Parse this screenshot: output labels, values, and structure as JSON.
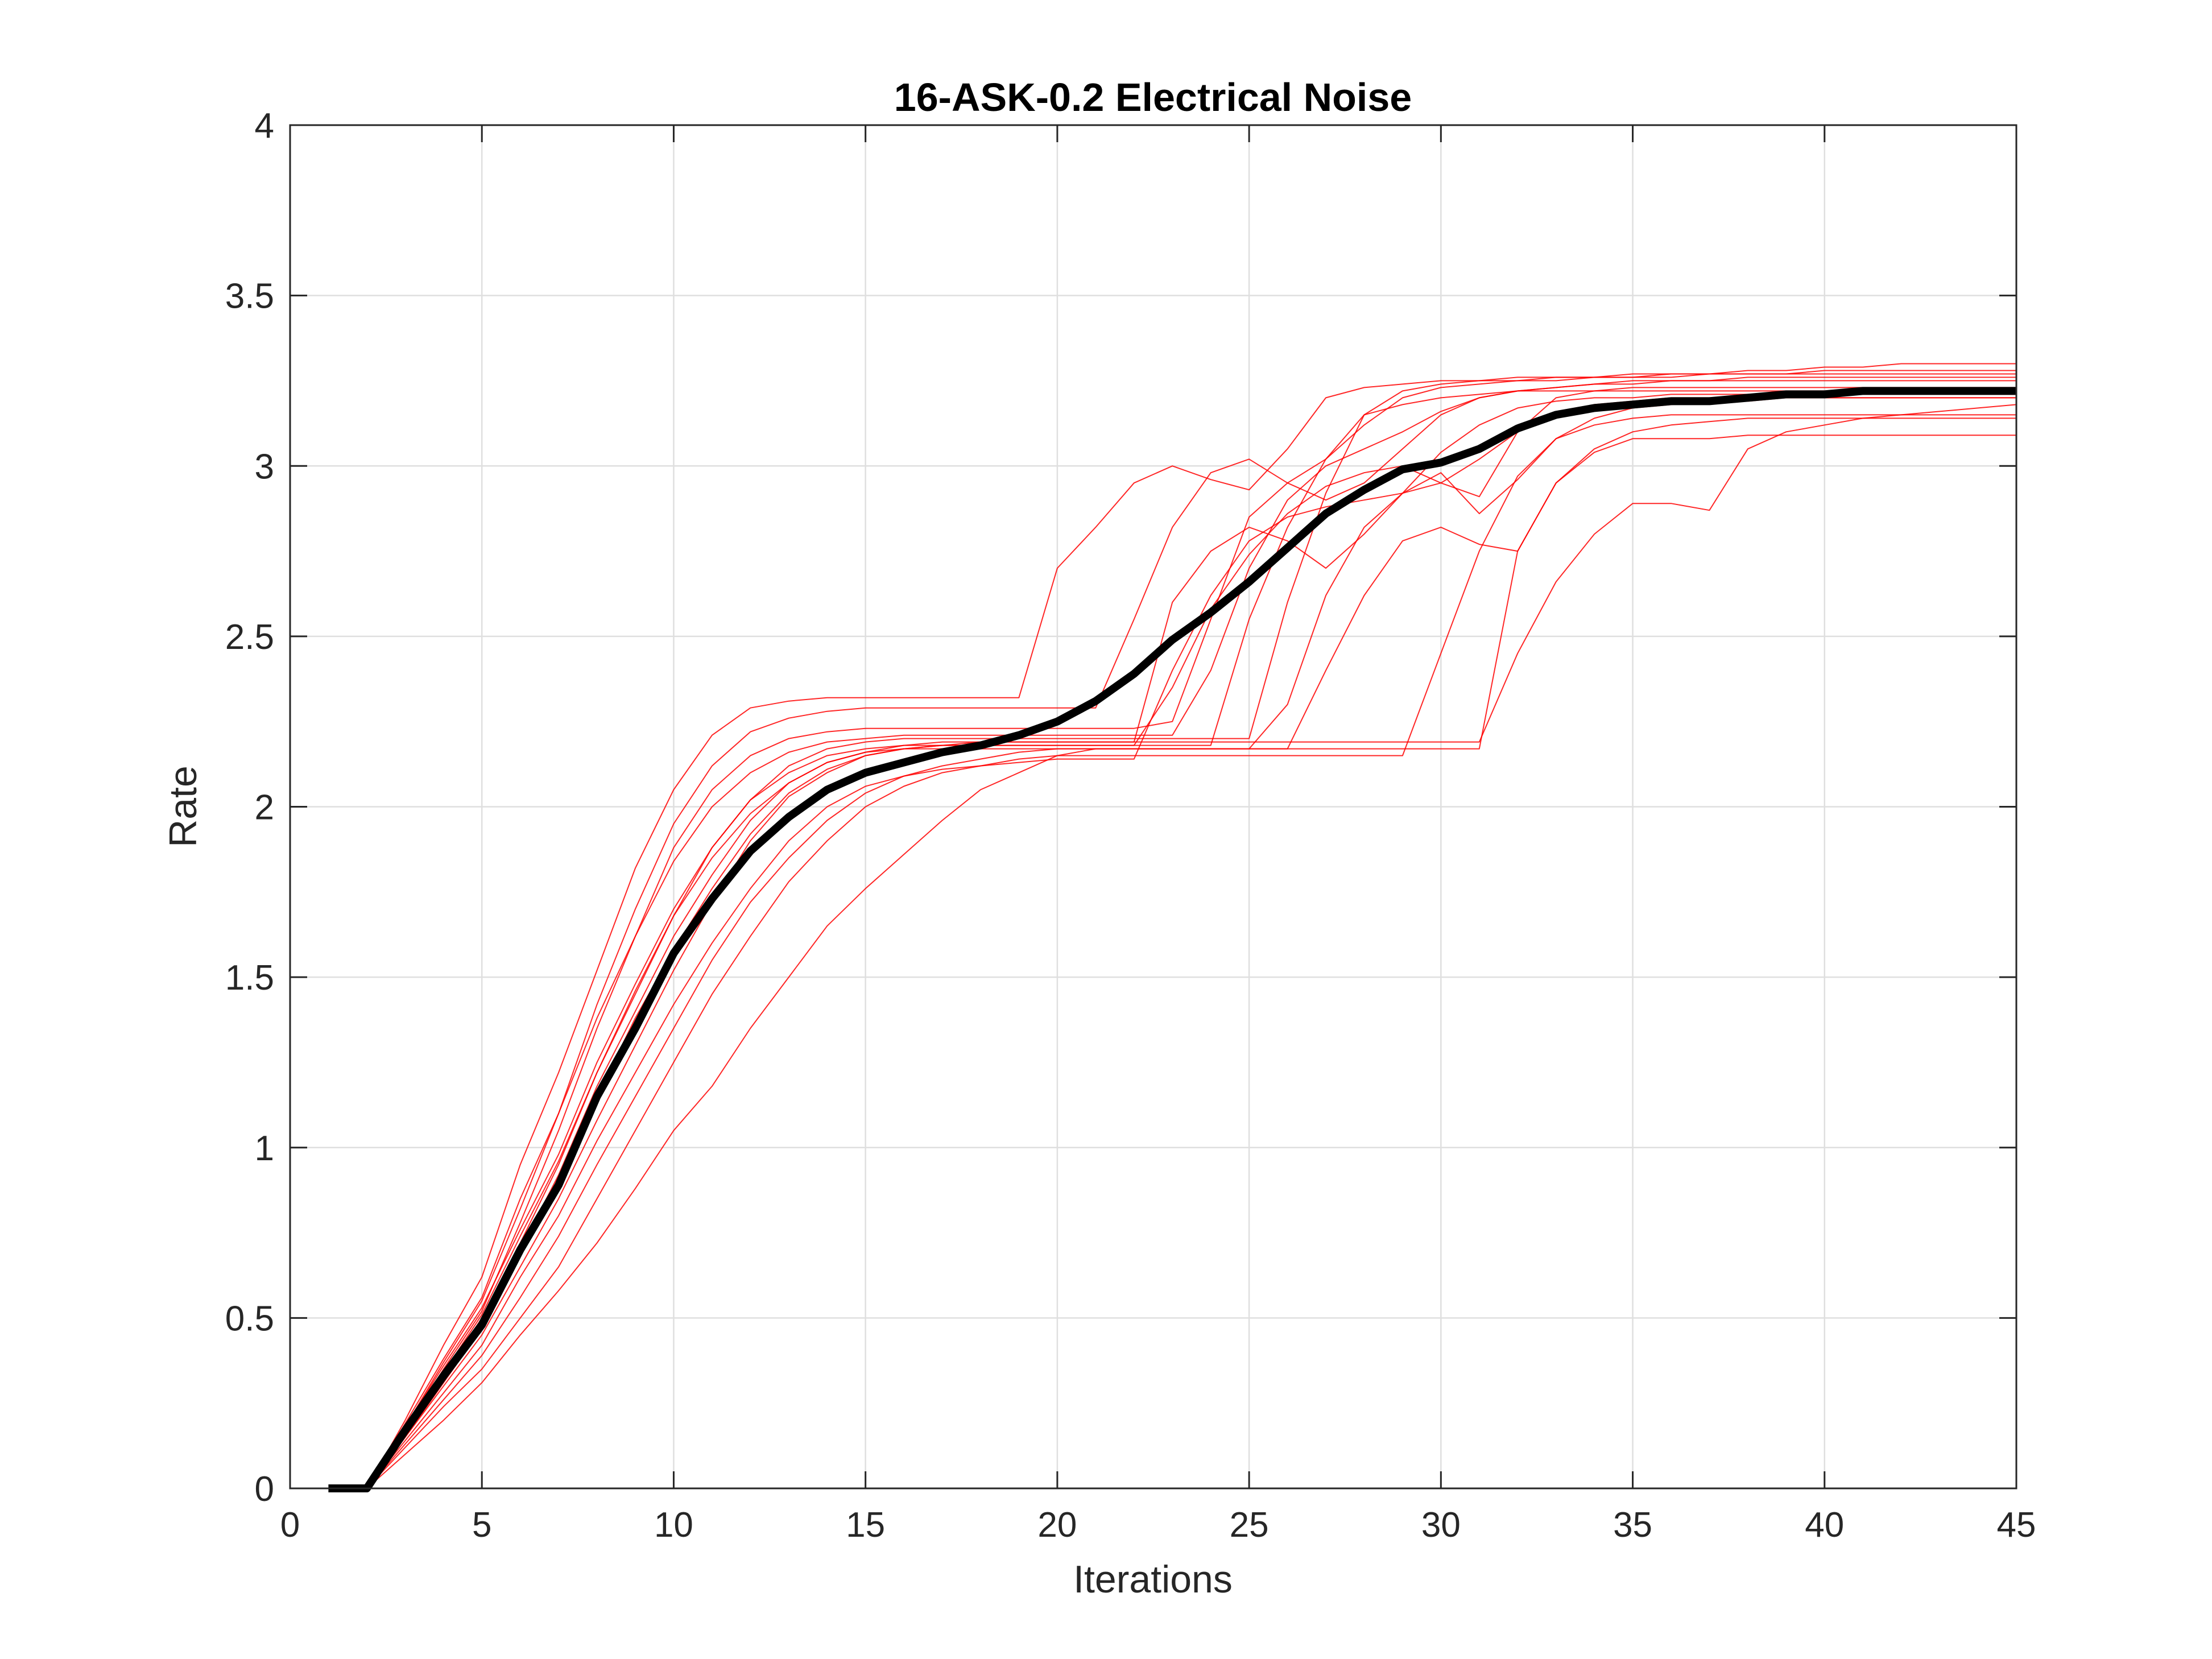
{
  "chart_data": {
    "type": "line",
    "title": "16-ASK-0.2 Electrical Noise",
    "xlabel": "Iterations",
    "ylabel": "Rate",
    "xlim": [
      0,
      45
    ],
    "ylim": [
      0,
      4
    ],
    "xticks": [
      0,
      5,
      10,
      15,
      20,
      25,
      30,
      35,
      40,
      45
    ],
    "yticks": [
      0,
      0.5,
      1,
      1.5,
      2,
      2.5,
      3,
      3.5,
      4
    ],
    "xtick_labels": [
      "0",
      "5",
      "10",
      "15",
      "20",
      "25",
      "30",
      "35",
      "40",
      "45"
    ],
    "ytick_labels": [
      "0",
      "0.5",
      "1",
      "1.5",
      "2",
      "2.5",
      "3",
      "3.5",
      "4"
    ],
    "grid": true,
    "legend": "none",
    "x": [
      1,
      2,
      3,
      4,
      5,
      6,
      7,
      8,
      9,
      10,
      11,
      12,
      13,
      14,
      15,
      16,
      17,
      18,
      19,
      20,
      21,
      22,
      23,
      24,
      25,
      26,
      27,
      28,
      29,
      30,
      31,
      32,
      33,
      34,
      35,
      36,
      37,
      38,
      39,
      40,
      41,
      42,
      43,
      44,
      45
    ],
    "colors": {
      "runs": "#ff0000",
      "mean": "#000000"
    },
    "series": [
      {
        "role": "mean",
        "values": [
          0,
          0,
          0.17,
          0.33,
          0.48,
          0.7,
          0.89,
          1.15,
          1.35,
          1.57,
          1.73,
          1.87,
          1.97,
          2.05,
          2.1,
          2.13,
          2.16,
          2.18,
          2.21,
          2.25,
          2.31,
          2.39,
          2.49,
          2.57,
          2.66,
          2.76,
          2.86,
          2.93,
          2.99,
          3.01,
          3.05,
          3.11,
          3.15,
          3.17,
          3.18,
          3.19,
          3.19,
          3.2,
          3.21,
          3.21,
          3.22,
          3.22,
          3.22,
          3.22,
          3.22
        ]
      },
      {
        "role": "run",
        "values": [
          0,
          0,
          0.2,
          0.42,
          0.62,
          0.95,
          1.22,
          1.52,
          1.82,
          2.05,
          2.21,
          2.29,
          2.31,
          2.32,
          2.32,
          2.32,
          2.32,
          2.32,
          2.32,
          2.7,
          2.82,
          2.95,
          3.0,
          2.96,
          2.93,
          3.05,
          3.2,
          3.23,
          3.24,
          3.25,
          3.25,
          3.26,
          3.26,
          3.26,
          3.27,
          3.27,
          3.27,
          3.27,
          3.27,
          3.27,
          3.27,
          3.27,
          3.27,
          3.27,
          3.27
        ]
      },
      {
        "role": "run",
        "values": [
          0,
          0,
          0.18,
          0.37,
          0.55,
          0.82,
          1.1,
          1.42,
          1.7,
          1.95,
          2.12,
          2.22,
          2.26,
          2.28,
          2.29,
          2.29,
          2.29,
          2.29,
          2.29,
          2.29,
          2.29,
          2.55,
          2.82,
          2.98,
          3.02,
          2.95,
          3.02,
          3.12,
          3.2,
          3.23,
          3.24,
          3.25,
          3.25,
          3.26,
          3.26,
          3.26,
          3.27,
          3.28,
          3.28,
          3.29,
          3.29,
          3.3,
          3.3,
          3.3,
          3.3
        ]
      },
      {
        "role": "run",
        "values": [
          0,
          0,
          0.17,
          0.35,
          0.52,
          0.78,
          1.05,
          1.35,
          1.62,
          1.88,
          2.05,
          2.15,
          2.2,
          2.22,
          2.23,
          2.23,
          2.23,
          2.23,
          2.23,
          2.23,
          2.23,
          2.23,
          2.25,
          2.55,
          2.85,
          2.95,
          2.9,
          2.95,
          3.05,
          3.15,
          3.2,
          3.22,
          3.23,
          3.24,
          3.25,
          3.25,
          3.25,
          3.26,
          3.26,
          3.26,
          3.26,
          3.26,
          3.26,
          3.26,
          3.26
        ]
      },
      {
        "role": "run",
        "values": [
          0,
          0,
          0.16,
          0.33,
          0.5,
          0.72,
          0.95,
          1.22,
          1.45,
          1.68,
          1.88,
          2.02,
          2.12,
          2.17,
          2.19,
          2.2,
          2.2,
          2.2,
          2.2,
          2.2,
          2.2,
          2.2,
          2.2,
          2.2,
          2.2,
          2.6,
          2.92,
          3.15,
          3.22,
          3.24,
          3.25,
          3.25,
          3.26,
          3.26,
          3.26,
          3.27,
          3.27,
          3.27,
          3.27,
          3.28,
          3.28,
          3.28,
          3.28,
          3.28,
          3.28
        ]
      },
      {
        "role": "run",
        "values": [
          0,
          0,
          0.15,
          0.3,
          0.45,
          0.65,
          0.85,
          1.08,
          1.3,
          1.52,
          1.72,
          1.9,
          2.03,
          2.1,
          2.15,
          2.17,
          2.18,
          2.19,
          2.19,
          2.19,
          2.19,
          2.19,
          2.19,
          2.19,
          2.19,
          2.19,
          2.19,
          2.19,
          2.19,
          2.19,
          2.19,
          2.45,
          2.66,
          2.8,
          2.89,
          2.89,
          2.87,
          3.05,
          3.1,
          3.12,
          3.14,
          3.15,
          3.16,
          3.17,
          3.18
        ]
      },
      {
        "role": "run",
        "values": [
          0,
          0,
          0.12,
          0.24,
          0.35,
          0.5,
          0.65,
          0.85,
          1.05,
          1.25,
          1.45,
          1.62,
          1.78,
          1.9,
          2.0,
          2.06,
          2.1,
          2.12,
          2.14,
          2.15,
          2.15,
          2.15,
          2.15,
          2.15,
          2.15,
          2.15,
          2.15,
          2.15,
          2.15,
          2.45,
          2.75,
          2.97,
          3.08,
          3.12,
          3.14,
          3.15,
          3.15,
          3.15,
          3.15,
          3.15,
          3.15,
          3.15,
          3.15,
          3.15,
          3.15
        ]
      },
      {
        "role": "run",
        "values": [
          0,
          0,
          0.1,
          0.2,
          0.31,
          0.45,
          0.58,
          0.72,
          0.88,
          1.05,
          1.18,
          1.35,
          1.5,
          1.65,
          1.76,
          1.86,
          1.96,
          2.05,
          2.1,
          2.15,
          2.17,
          2.17,
          2.17,
          2.17,
          2.17,
          2.17,
          2.17,
          2.17,
          2.17,
          2.17,
          2.17,
          2.75,
          2.95,
          3.04,
          3.08,
          3.08,
          3.08,
          3.09,
          3.09,
          3.09,
          3.09,
          3.09,
          3.09,
          3.09,
          3.09
        ]
      },
      {
        "role": "run",
        "values": [
          0,
          0,
          0.14,
          0.28,
          0.42,
          0.62,
          0.8,
          1.02,
          1.22,
          1.42,
          1.6,
          1.76,
          1.9,
          2.0,
          2.06,
          2.09,
          2.11,
          2.12,
          2.13,
          2.14,
          2.14,
          2.14,
          2.4,
          2.62,
          2.78,
          2.85,
          2.88,
          2.9,
          2.92,
          2.95,
          3.02,
          3.1,
          3.15,
          3.18,
          3.19,
          3.2,
          3.2,
          3.2,
          3.2,
          3.2,
          3.2,
          3.2,
          3.2,
          3.2,
          3.2
        ]
      },
      {
        "role": "run",
        "values": [
          0,
          0,
          0.19,
          0.38,
          0.56,
          0.85,
          1.1,
          1.38,
          1.62,
          1.84,
          2.0,
          2.1,
          2.16,
          2.19,
          2.2,
          2.21,
          2.21,
          2.21,
          2.21,
          2.21,
          2.21,
          2.21,
          2.21,
          2.4,
          2.7,
          2.9,
          3.0,
          3.05,
          3.1,
          3.16,
          3.2,
          3.22,
          3.23,
          3.24,
          3.24,
          3.25,
          3.25,
          3.25,
          3.25,
          3.25,
          3.25,
          3.25,
          3.25,
          3.25,
          3.25
        ]
      },
      {
        "role": "run",
        "values": [
          0,
          0,
          0.16,
          0.32,
          0.49,
          0.7,
          0.92,
          1.18,
          1.4,
          1.62,
          1.8,
          1.96,
          2.07,
          2.13,
          2.16,
          2.17,
          2.17,
          2.17,
          2.17,
          2.17,
          2.17,
          2.17,
          2.17,
          2.17,
          2.17,
          2.3,
          2.62,
          2.82,
          2.92,
          2.98,
          2.86,
          2.96,
          3.08,
          3.14,
          3.17,
          3.18,
          3.19,
          3.19,
          3.2,
          3.2,
          3.2,
          3.2,
          3.2,
          3.2,
          3.2
        ]
      },
      {
        "role": "run",
        "values": [
          0,
          0,
          0.15,
          0.31,
          0.47,
          0.68,
          0.9,
          1.15,
          1.38,
          1.58,
          1.76,
          1.92,
          2.04,
          2.11,
          2.15,
          2.17,
          2.18,
          2.18,
          2.18,
          2.18,
          2.18,
          2.18,
          2.35,
          2.58,
          2.74,
          2.86,
          2.94,
          2.98,
          3.0,
          2.95,
          2.91,
          3.1,
          3.2,
          3.22,
          3.23,
          3.23,
          3.23,
          3.23,
          3.23,
          3.23,
          3.23,
          3.23,
          3.23,
          3.23,
          3.23
        ]
      },
      {
        "role": "run",
        "values": [
          0,
          0,
          0.18,
          0.36,
          0.53,
          0.76,
          0.98,
          1.25,
          1.48,
          1.7,
          1.88,
          2.02,
          2.1,
          2.15,
          2.17,
          2.18,
          2.18,
          2.18,
          2.18,
          2.18,
          2.18,
          2.18,
          2.18,
          2.18,
          2.55,
          2.82,
          3.02,
          3.15,
          3.18,
          3.2,
          3.21,
          3.22,
          3.22,
          3.22,
          3.22,
          3.22,
          3.22,
          3.22,
          3.22,
          3.22,
          3.22,
          3.22,
          3.22,
          3.22,
          3.22
        ]
      },
      {
        "role": "run",
        "values": [
          0,
          0,
          0.13,
          0.26,
          0.39,
          0.56,
          0.74,
          0.95,
          1.15,
          1.35,
          1.55,
          1.72,
          1.85,
          1.96,
          2.04,
          2.09,
          2.12,
          2.14,
          2.16,
          2.17,
          2.17,
          2.17,
          2.17,
          2.17,
          2.17,
          2.17,
          2.4,
          2.62,
          2.78,
          2.82,
          2.77,
          2.75,
          2.95,
          3.05,
          3.1,
          3.12,
          3.13,
          3.14,
          3.14,
          3.14,
          3.14,
          3.14,
          3.14,
          3.14,
          3.14
        ]
      },
      {
        "role": "run",
        "values": [
          0,
          0,
          0.17,
          0.34,
          0.51,
          0.74,
          0.96,
          1.22,
          1.46,
          1.68,
          1.85,
          1.98,
          2.07,
          2.13,
          2.16,
          2.18,
          2.19,
          2.19,
          2.19,
          2.19,
          2.19,
          2.19,
          2.6,
          2.75,
          2.82,
          2.78,
          2.7,
          2.8,
          2.92,
          3.04,
          3.12,
          3.17,
          3.19,
          3.2,
          3.2,
          3.21,
          3.21,
          3.21,
          3.21,
          3.21,
          3.21,
          3.21,
          3.21,
          3.21,
          3.21
        ]
      }
    ]
  }
}
